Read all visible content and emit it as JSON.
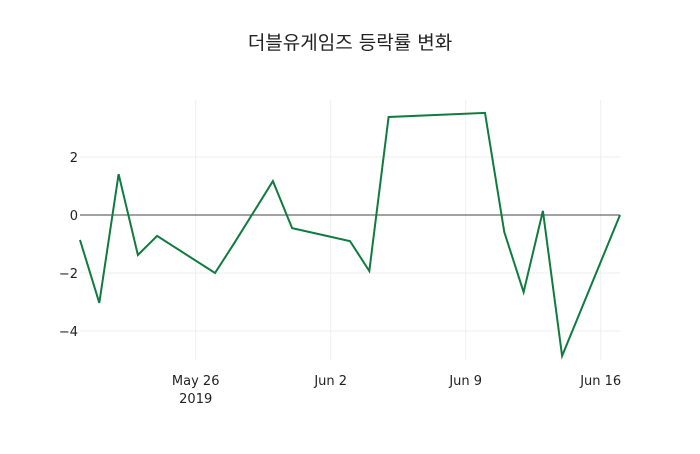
{
  "chart_data": {
    "type": "line",
    "title": "더블유게임즈 등락률 변화",
    "xlabel": "",
    "ylabel": "",
    "x": [
      "2019-05-20",
      "2019-05-21",
      "2019-05-22",
      "2019-05-23",
      "2019-05-24",
      "2019-05-27",
      "2019-05-28",
      "2019-05-30",
      "2019-05-31",
      "2019-06-03",
      "2019-06-04",
      "2019-06-05",
      "2019-06-10",
      "2019-06-11",
      "2019-06-12",
      "2019-06-13",
      "2019-06-14",
      "2019-06-17"
    ],
    "series": [
      {
        "name": "등락률",
        "color": "#0f7b3f",
        "values": [
          -0.86,
          -3.03,
          1.41,
          -1.38,
          -0.72,
          -2.0,
          -0.97,
          1.17,
          -0.45,
          -0.9,
          -1.93,
          3.38,
          3.52,
          -0.59,
          -2.66,
          0.14,
          -4.86,
          0.0
        ]
      }
    ],
    "x_ticks": [
      {
        "date": "2019-05-26",
        "label": "May 26",
        "sublabel": "2019"
      },
      {
        "date": "2019-06-02",
        "label": "Jun 2",
        "sublabel": ""
      },
      {
        "date": "2019-06-09",
        "label": "Jun 9",
        "sublabel": ""
      },
      {
        "date": "2019-06-16",
        "label": "Jun 16",
        "sublabel": ""
      }
    ],
    "y_ticks": [
      2,
      0,
      -2,
      -4
    ],
    "y_tick_labels": [
      "2",
      "0",
      "−2",
      "−4"
    ],
    "xlim": [
      "2019-05-20",
      "2019-06-17"
    ],
    "ylim": [
      -5.0,
      4.0
    ],
    "grid": true,
    "legend": "none",
    "zeroline_color": "#444444",
    "grid_color": "#eeeeee"
  }
}
